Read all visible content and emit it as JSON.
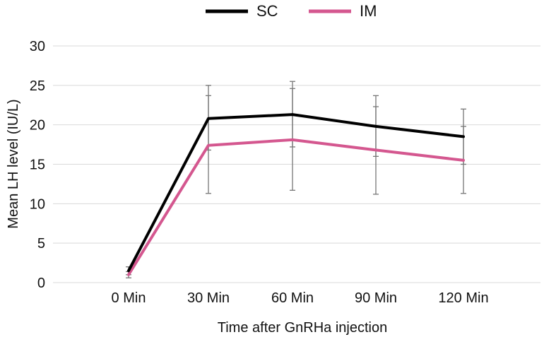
{
  "chart_data": {
    "type": "line",
    "title": "",
    "xlabel": "Time after GnRHa injection",
    "ylabel": "Mean LH level (IU/L)",
    "categories": [
      "0 Min",
      "30 Min",
      "60 Min",
      "90 Min",
      "120 Min"
    ],
    "ylim": [
      0,
      30
    ],
    "yticks": [
      0,
      5,
      10,
      15,
      20,
      25,
      30
    ],
    "grid": true,
    "legend_position": "top-center",
    "series": [
      {
        "name": "SC",
        "color": "#000000",
        "values": [
          1.5,
          20.8,
          21.3,
          19.8,
          18.5
        ],
        "err_low": [
          1.0,
          16.8,
          17.2,
          16.0,
          15.0
        ],
        "err_high": [
          2.0,
          25.0,
          25.5,
          23.7,
          22.0
        ]
      },
      {
        "name": "IM",
        "color": "#d4578f",
        "values": [
          1.0,
          17.4,
          18.1,
          16.8,
          15.5
        ],
        "err_low": [
          0.6,
          11.3,
          11.7,
          11.2,
          11.3
        ],
        "err_high": [
          1.4,
          23.7,
          24.6,
          22.3,
          19.8
        ]
      }
    ]
  }
}
